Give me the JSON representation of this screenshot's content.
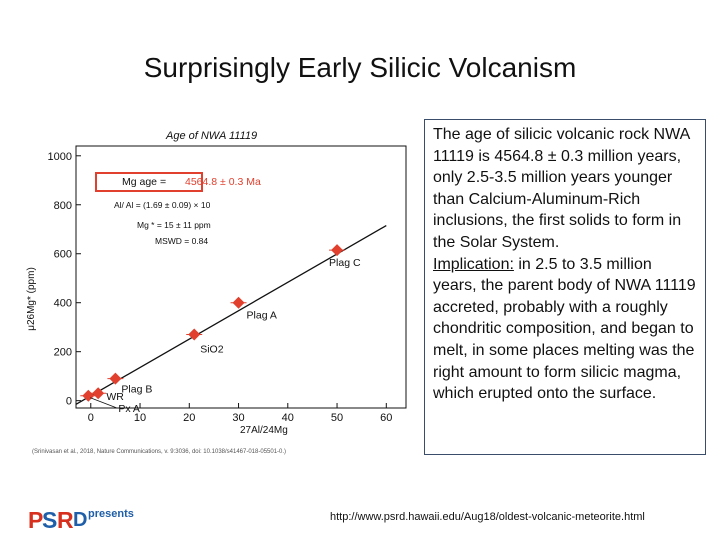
{
  "slide": {
    "title": "Surprisingly Early Silicic Volcanism",
    "description": "The age of silicic volcanic rock NWA 11119 is 4564.8 ± 0.3 million years, only 2.5-3.5 million years younger than Calcium-Aluminum-Rich inclusions, the first solids to form in the Solar System.",
    "implication_label": "Implication:",
    "implication_text": " in 2.5 to 3.5 million years, the parent body of NWA 11119 accreted, probably with a roughly chondritic composition, and began to melt, in some places melting was the right amount to form silicic magma, which erupted onto the surface.",
    "url": "http://www.psrd.hawaii.edu/Aug18/oldest-volcanic-meteorite.html",
    "logo": {
      "p": "P",
      "s": "S",
      "r": "R",
      "d": "D",
      "presents": "presents",
      "colors": {
        "p": "#d7301f",
        "s": "#1f5ea8",
        "r": "#d7301f",
        "d": "#1f5ea8"
      }
    }
  },
  "chart_data": {
    "type": "scatter",
    "title": "Age of NWA 11119",
    "xlabel": "27Al/24Mg",
    "ylabel": "μ26Mg* (ppm)",
    "xlim": [
      -3,
      64
    ],
    "ylim": [
      -30,
      1040
    ],
    "xticks": [
      0,
      10,
      20,
      30,
      40,
      50,
      60
    ],
    "yticks": [
      0,
      200,
      400,
      600,
      800,
      1000
    ],
    "grid": false,
    "points": [
      {
        "x": -0.5,
        "y": 20,
        "label": ""
      },
      {
        "x": 1.5,
        "y": 30,
        "label": ""
      },
      {
        "x": 5,
        "y": 90,
        "label": "Plag B"
      },
      {
        "x": 21,
        "y": 270,
        "label": "SiO2"
      },
      {
        "x": 30,
        "y": 400,
        "label": "Plag A"
      },
      {
        "x": 50,
        "y": 615,
        "label": "Plag C"
      }
    ],
    "extra_labels": [
      "WR",
      "Px A"
    ],
    "fit_line": {
      "x": [
        -3,
        60
      ],
      "y": [
        -15,
        715
      ]
    },
    "marker_color": "#e2402e",
    "inset": {
      "age_prefix": "Mg age = ",
      "age_value": "4564.8 ± 0.3 Ma",
      "line2": "Al/ Al = (1.69 ± 0.09) × 10",
      "line3": "Mg * = 15 ± 11 ppm",
      "line4": "MSWD = 0.84",
      "age_box_color": "#e2402e"
    },
    "citation": "(Srinivasan et al., 2018, Nature Communications, v. 9:3036, doi: 10.1038/s41467-018-05501-0.)"
  }
}
